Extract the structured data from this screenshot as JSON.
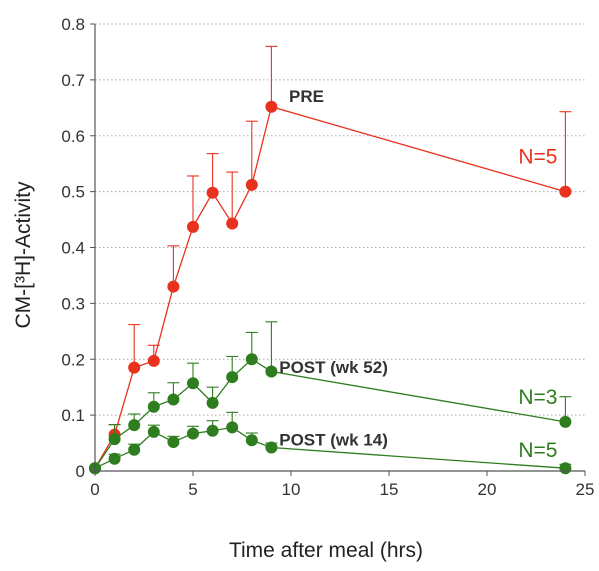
{
  "chart_data": {
    "type": "line",
    "title": "",
    "xlabel": "Time after meal (hrs)",
    "ylabel": "CM-[³H]-Activity",
    "xlim": [
      0,
      25
    ],
    "ylim": [
      0,
      0.8
    ],
    "x_ticks": [
      "0",
      "5",
      "10",
      "15",
      "20",
      "25"
    ],
    "y_ticks": [
      "0",
      "0.1",
      "0.2",
      "0.3",
      "0.4",
      "0.5",
      "0.6",
      "0.7",
      "0.8"
    ],
    "grid": "horizontal dotted",
    "series": [
      {
        "name": "PRE",
        "n_label": "N=5",
        "color": "#e8321e",
        "x": [
          0,
          1,
          2,
          3,
          4,
          5,
          6,
          7,
          8,
          9,
          24
        ],
        "y": [
          0.005,
          0.065,
          0.185,
          0.197,
          0.33,
          0.437,
          0.498,
          0.443,
          0.512,
          0.652,
          0.5
        ],
        "error_upper": [
          0,
          0.083,
          0.262,
          0.225,
          0.403,
          0.528,
          0.568,
          0.535,
          0.626,
          0.76,
          0.643
        ]
      },
      {
        "name": "POST (wk 52)",
        "n_label": "N=3",
        "color": "#2e7d1e",
        "x": [
          0,
          1,
          2,
          3,
          4,
          5,
          6,
          7,
          8,
          9,
          24
        ],
        "y": [
          0.005,
          0.057,
          0.082,
          0.115,
          0.128,
          0.157,
          0.122,
          0.168,
          0.2,
          0.178,
          0.088
        ],
        "error_upper": [
          0,
          0.083,
          0.102,
          0.14,
          0.158,
          0.193,
          0.15,
          0.205,
          0.248,
          0.267,
          0.133
        ]
      },
      {
        "name": "POST (wk 14)",
        "n_label": "N=5",
        "color": "#2e7d1e",
        "x": [
          0,
          1,
          2,
          3,
          4,
          5,
          6,
          7,
          8,
          9,
          24
        ],
        "y": [
          0.005,
          0.022,
          0.038,
          0.07,
          0.052,
          0.067,
          0.072,
          0.078,
          0.055,
          0.042,
          0.005
        ],
        "error_upper": [
          0,
          0.03,
          0.048,
          0.082,
          0.062,
          0.08,
          0.09,
          0.105,
          0.068,
          0.05,
          0.012
        ]
      }
    ]
  }
}
